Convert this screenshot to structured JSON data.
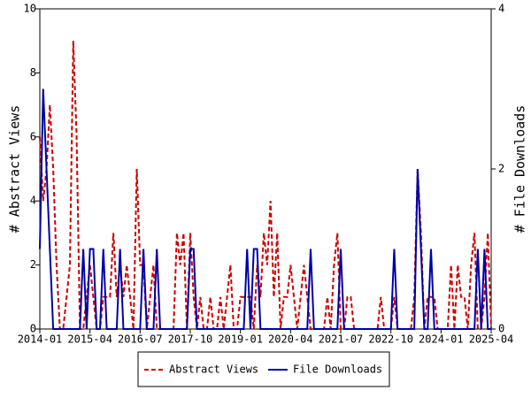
{
  "chart_data": {
    "type": "line",
    "y_label": "# Abstract Views",
    "y2_label": "# File Downloads",
    "x": [
      "2014-01",
      "2014-02",
      "2014-03",
      "2014-04",
      "2014-05",
      "2014-06",
      "2014-07",
      "2014-08",
      "2014-09",
      "2014-10",
      "2014-11",
      "2014-12",
      "2015-01",
      "2015-02",
      "2015-03",
      "2015-04",
      "2015-05",
      "2015-06",
      "2015-07",
      "2015-08",
      "2015-09",
      "2015-10",
      "2015-11",
      "2015-12",
      "2016-01",
      "2016-02",
      "2016-03",
      "2016-04",
      "2016-05",
      "2016-06",
      "2016-07",
      "2016-08",
      "2016-09",
      "2016-10",
      "2016-11",
      "2016-12",
      "2017-01",
      "2017-02",
      "2017-03",
      "2017-04",
      "2017-05",
      "2017-06",
      "2017-07",
      "2017-08",
      "2017-09",
      "2017-10",
      "2017-11",
      "2017-12",
      "2018-01",
      "2018-02",
      "2018-03",
      "2018-04",
      "2018-05",
      "2018-06",
      "2018-07",
      "2018-08",
      "2018-09",
      "2018-10",
      "2018-11",
      "2018-12",
      "2019-01",
      "2019-02",
      "2019-03",
      "2019-04",
      "2019-05",
      "2019-06",
      "2019-07",
      "2019-08",
      "2019-09",
      "2019-10",
      "2019-11",
      "2019-12",
      "2020-01",
      "2020-02",
      "2020-03",
      "2020-04",
      "2020-05",
      "2020-06",
      "2020-07",
      "2020-08",
      "2020-09",
      "2020-10",
      "2020-11",
      "2020-12",
      "2021-01",
      "2021-02",
      "2021-03",
      "2021-04",
      "2021-05",
      "2021-06",
      "2021-07",
      "2021-08",
      "2021-09",
      "2021-10",
      "2021-11",
      "2021-12",
      "2022-01",
      "2022-02",
      "2022-03",
      "2022-04",
      "2022-05",
      "2022-06",
      "2022-07",
      "2022-08",
      "2022-09",
      "2022-10",
      "2022-11",
      "2022-12",
      "2023-01",
      "2023-02",
      "2023-03",
      "2023-04",
      "2023-05",
      "2023-06",
      "2023-07",
      "2023-08",
      "2023-09",
      "2023-10",
      "2023-11",
      "2023-12",
      "2024-01",
      "2024-02",
      "2024-03",
      "2024-04",
      "2024-05",
      "2024-06",
      "2024-07",
      "2024-08",
      "2024-09",
      "2024-10",
      "2024-11",
      "2024-12",
      "2025-01",
      "2025-02",
      "2025-03",
      "2025-04"
    ],
    "xticks": [
      "2014-01",
      "2015-04",
      "2016-07",
      "2017-10",
      "2019-01",
      "2020-04",
      "2021-07",
      "2022-10",
      "2024-01",
      "2025-04"
    ],
    "ylim": [
      0,
      10
    ],
    "yticks": [
      0,
      2,
      4,
      6,
      8,
      10
    ],
    "y2lim": [
      0,
      4
    ],
    "y2ticks": [
      0,
      2,
      4
    ],
    "series": [
      {
        "name": "Abstract Views",
        "color": "#cc0000",
        "dash": true,
        "values": [
          6,
          4,
          5,
          7,
          5,
          2,
          0,
          0,
          1,
          2,
          9,
          6,
          0,
          0,
          1,
          2,
          1,
          0,
          0,
          1,
          1,
          1,
          3,
          1,
          2,
          1,
          2,
          1,
          0,
          5,
          2,
          2,
          0,
          1,
          2,
          0,
          0,
          0,
          0,
          0,
          0,
          3,
          2,
          3,
          0,
          3,
          1,
          0,
          1,
          0,
          0,
          1,
          0,
          0,
          1,
          0,
          1,
          2,
          0,
          0,
          1,
          1,
          1,
          1,
          0,
          2,
          1,
          3,
          2,
          4,
          1,
          3,
          0,
          1,
          1,
          2,
          1,
          0,
          1,
          2,
          1,
          0,
          0,
          0,
          0,
          0,
          1,
          0,
          2,
          3,
          0,
          0,
          1,
          1,
          0,
          0,
          0,
          0,
          0,
          0,
          0,
          0,
          1,
          0,
          0,
          0,
          1,
          0,
          0,
          0,
          0,
          0,
          1,
          5,
          3,
          0,
          1,
          1,
          1,
          0,
          0,
          0,
          0,
          2,
          0,
          2,
          1,
          1,
          0,
          2,
          3,
          0,
          0,
          1,
          3,
          0
        ]
      },
      {
        "name": "File Downloads",
        "color": "#0000aa",
        "dash": false,
        "axis": "y2",
        "values": [
          1,
          3,
          2,
          1,
          0,
          0,
          0,
          0,
          0,
          0,
          0,
          0,
          0,
          1,
          0,
          1,
          1,
          0,
          0,
          1,
          0,
          0,
          0,
          0,
          1,
          0,
          0,
          0,
          0,
          0,
          0,
          1,
          0,
          0,
          0,
          1,
          0,
          0,
          0,
          0,
          0,
          0,
          0,
          0,
          0,
          1,
          1,
          0,
          0,
          0,
          0,
          0,
          0,
          0,
          0,
          0,
          0,
          0,
          0,
          0,
          0,
          0,
          1,
          0,
          1,
          1,
          0,
          0,
          0,
          0,
          0,
          0,
          0,
          0,
          0,
          0,
          0,
          0,
          0,
          0,
          0,
          1,
          0,
          0,
          0,
          0,
          0,
          0,
          0,
          0,
          1,
          0,
          0,
          0,
          0,
          0,
          0,
          0,
          0,
          0,
          0,
          0,
          0,
          0,
          0,
          0,
          1,
          0,
          0,
          0,
          0,
          0,
          0,
          2,
          1,
          0,
          0,
          1,
          0,
          0,
          0,
          0,
          0,
          0,
          0,
          0,
          0,
          0,
          0,
          0,
          0,
          1,
          0,
          1,
          0,
          0
        ]
      }
    ]
  }
}
